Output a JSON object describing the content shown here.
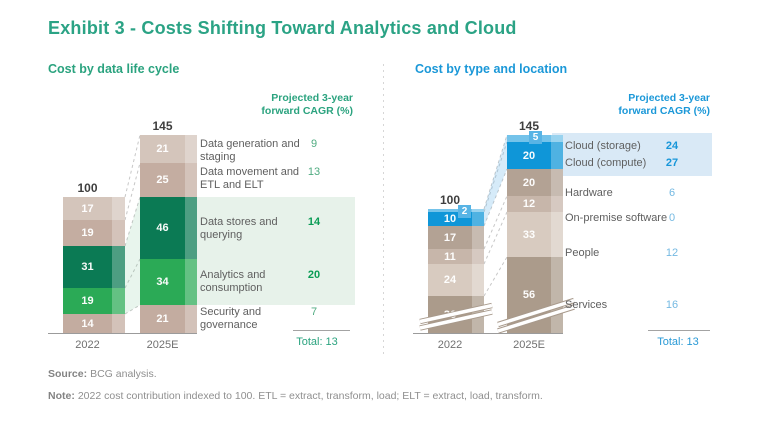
{
  "title": "Exhibit 3 - Costs Shifting Toward Analytics and Cloud",
  "chart_data": [
    {
      "type": "bar",
      "stacked": true,
      "variant": "pseudo-3d-stacked-column",
      "title": "Cost by data life cycle",
      "accent": "#2ba37f",
      "cagr_header": "Projected 3-year forward CAGR (%)",
      "categories": [
        "2022",
        "2025E"
      ],
      "bar_totals": [
        "100",
        "145"
      ],
      "total_label": "Total: 13",
      "highlight_fill": "#e7f2ea",
      "band_fill": "rgba(110,190,140,0.16)",
      "palette": {
        "tan_light": "#d4c5bb",
        "tan_mid": "#c4ada1",
        "green_dark": "#0b7a54",
        "green_bright": "#2baa56",
        "tan_bottom": "#c3aca0"
      },
      "cagr_colors": {
        "regular": "#4fab80",
        "emphasis": "#0a9c55",
        "total": "#2ba37f"
      },
      "rows": [
        {
          "label": "Data generation and staging",
          "values": [
            17,
            21
          ],
          "cagr": "9",
          "emphasis": false,
          "color_key": "tan_light"
        },
        {
          "label": "Data movement and ETL and ELT",
          "values": [
            19,
            25
          ],
          "cagr": "13",
          "emphasis": false,
          "color_key": "tan_mid"
        },
        {
          "label": "Data stores and querying",
          "values": [
            31,
            46
          ],
          "cagr": "14",
          "emphasis": true,
          "color_key": "green_dark",
          "highlight": true
        },
        {
          "label": "Analytics and consumption",
          "values": [
            19,
            34
          ],
          "cagr": "20",
          "emphasis": true,
          "color_key": "green_bright",
          "highlight": true
        },
        {
          "label": "Security and governance",
          "values": [
            14,
            21
          ],
          "cagr": "7",
          "emphasis": false,
          "color_key": "tan_bottom"
        }
      ]
    },
    {
      "type": "bar",
      "stacked": true,
      "variant": "pseudo-3d-stacked-column",
      "title": "Cost by type and location",
      "accent": "#1b98d8",
      "cagr_header": "Projected 3-year forward CAGR (%)",
      "categories": [
        "2022",
        "2025E"
      ],
      "bar_totals": [
        "100",
        "145"
      ],
      "total_label": "Total: 13",
      "highlight_fill": "#d9e9f6",
      "band_fill": "rgba(120,190,235,0.30)",
      "callout_fill": "#58b4e5",
      "axis_break": true,
      "palette": {
        "blue_light": "#74c3ea",
        "blue": "#0f96d8",
        "taupe_dark": "#b3a294",
        "taupe_mid": "#c7b6aa",
        "taupe_light": "#d8cbc0",
        "taupe_deep": "#ab9b8b"
      },
      "cagr_colors": {
        "regular": "#74b9e2",
        "emphasis": "#1796d9",
        "total": "#2a9ad6"
      },
      "rows": [
        {
          "label": "Cloud (storage)",
          "values": [
            2,
            5
          ],
          "cagr": "24",
          "emphasis": true,
          "color_key": "blue_light",
          "highlight": true,
          "callout": true
        },
        {
          "label": "Cloud (compute)",
          "values": [
            10,
            20
          ],
          "cagr": "27",
          "emphasis": true,
          "color_key": "blue",
          "highlight": true
        },
        {
          "label": "Hardware",
          "values": [
            17,
            20
          ],
          "cagr": "6",
          "emphasis": false,
          "color_key": "taupe_dark"
        },
        {
          "label": "On-premise software",
          "values": [
            11,
            12
          ],
          "cagr": "0",
          "emphasis": false,
          "color_key": "taupe_mid"
        },
        {
          "label": "People",
          "values": [
            24,
            33
          ],
          "cagr": "12",
          "emphasis": false,
          "color_key": "taupe_light"
        },
        {
          "label": "Services",
          "values": [
            36,
            56
          ],
          "cagr": "16",
          "emphasis": false,
          "color_key": "taupe_deep",
          "axis_break": true
        }
      ]
    }
  ],
  "footer": {
    "source_label": "Source:",
    "source_text": "BCG analysis.",
    "note_label": "Note:",
    "note_text": "2022 cost contribution indexed to 100. ETL = extract, transform, load; ELT = extract, load, transform."
  }
}
